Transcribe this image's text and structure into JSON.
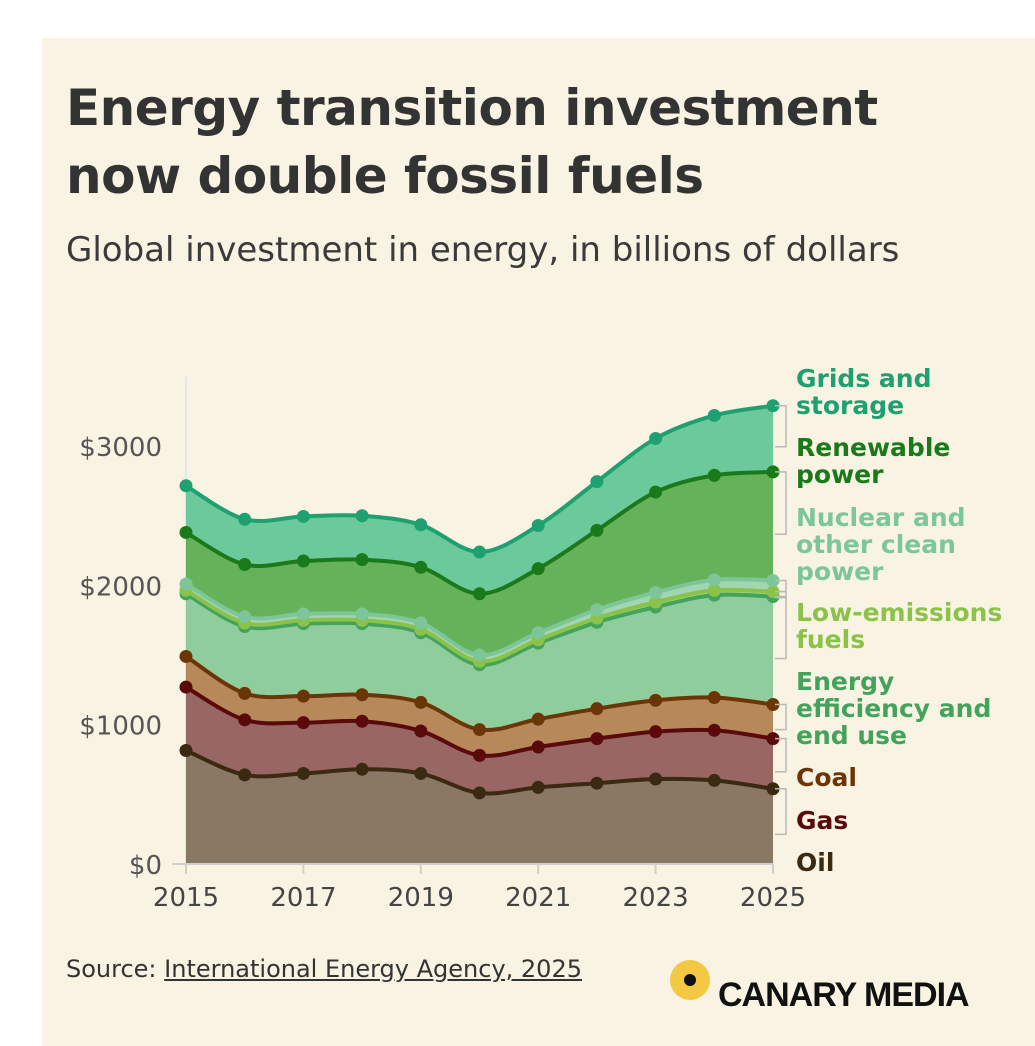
{
  "title": "Energy transition investment now double fossil fuels",
  "subtitle": "Global investment in energy, in billions of dollars",
  "source": {
    "prefix": "Source: ",
    "link_text": "International Energy Agency, 2025"
  },
  "logo": {
    "text": "CANARY MEDIA",
    "icon": "canary-dot-icon"
  },
  "chart_data": {
    "type": "area",
    "stacked": true,
    "x": [
      2015,
      2016,
      2017,
      2018,
      2019,
      2020,
      2021,
      2022,
      2023,
      2024,
      2025
    ],
    "x_ticks": [
      "2015",
      "2017",
      "2019",
      "2021",
      "2023",
      "2025"
    ],
    "y_ticks": [
      {
        "value": 0,
        "label": "$0"
      },
      {
        "value": 1000,
        "label": "$1000"
      },
      {
        "value": 2000,
        "label": "$2000"
      },
      {
        "value": 3000,
        "label": "$3000"
      }
    ],
    "ylim": [
      0,
      3500
    ],
    "grid": false,
    "legend": "right, direct labels",
    "series": [
      {
        "name": "Oil",
        "color": "#705e48",
        "label_color": "#3b2a12",
        "values": [
          815,
          640,
          650,
          680,
          650,
          510,
          550,
          580,
          610,
          600,
          540
        ]
      },
      {
        "name": "Gas",
        "color": "#824747",
        "label_color": "#5a0a0a",
        "values": [
          455,
          395,
          365,
          345,
          305,
          270,
          290,
          320,
          340,
          360,
          360
        ]
      },
      {
        "name": "Coal",
        "color": "#a8703c",
        "label_color": "#6b3505",
        "values": [
          220,
          190,
          190,
          190,
          205,
          185,
          200,
          215,
          225,
          235,
          245
        ]
      },
      {
        "name": "Energy efficiency and end use",
        "color": "#79c48e",
        "label_color": "#43a35c",
        "values": [
          450,
          480,
          520,
          510,
          500,
          465,
          545,
          620,
          670,
          735,
          775
        ]
      },
      {
        "name": "Low-emissions fuels",
        "color": "#8fcc56",
        "label_color": "#8bc34a",
        "values": [
          25,
          25,
          25,
          25,
          25,
          25,
          25,
          30,
          35,
          35,
          35
        ]
      },
      {
        "name": "Nuclear and other clean power",
        "color": "#8fcfa8",
        "label_color": "#7cc69a",
        "values": [
          45,
          45,
          45,
          45,
          45,
          45,
          50,
          60,
          70,
          75,
          80
        ]
      },
      {
        "name": "Renewable power",
        "color": "#45a33d",
        "label_color": "#1a7a1a",
        "values": [
          370,
          375,
          380,
          390,
          400,
          440,
          460,
          570,
          720,
          750,
          780
        ]
      },
      {
        "name": "Grids and storage",
        "color": "#4cc08c",
        "label_color": "#1fa070",
        "values": [
          335,
          325,
          320,
          315,
          305,
          300,
          310,
          350,
          385,
          430,
          475
        ]
      }
    ]
  }
}
